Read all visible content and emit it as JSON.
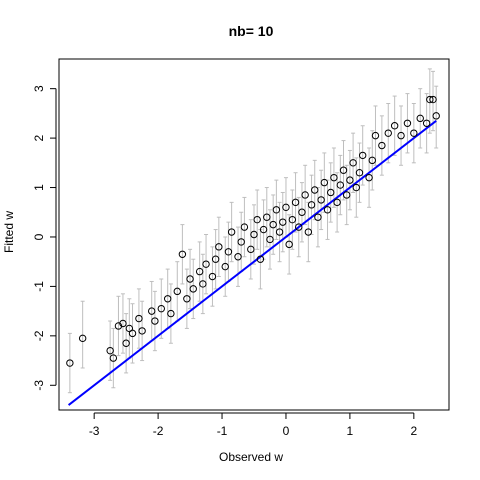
{
  "chart_data": {
    "type": "scatter",
    "title": "nb= 10",
    "xlabel": "Observed w",
    "ylabel": "Fitted w",
    "xlim": [
      -3.55,
      2.55
    ],
    "ylim": [
      -3.5,
      3.6
    ],
    "x_ticks": [
      "-3",
      "-2",
      "-1",
      "0",
      "1",
      "2"
    ],
    "y_ticks": [
      "-3",
      "-2",
      "-1",
      "0",
      "1",
      "2",
      "3"
    ],
    "grid": false,
    "legend": "none",
    "series": [
      {
        "kind": "points_with_error_bars",
        "marker": "open-circle",
        "point_color": "#000000",
        "errorbar_color": "#bebebe",
        "points": [
          {
            "x": -3.38,
            "y": -2.55,
            "lo": -3.15,
            "hi": -1.95
          },
          {
            "x": -3.18,
            "y": -2.05,
            "lo": -2.65,
            "hi": -1.3
          },
          {
            "x": -2.75,
            "y": -2.3,
            "lo": -2.9,
            "hi": -1.7
          },
          {
            "x": -2.7,
            "y": -2.45,
            "lo": -3.05,
            "hi": -1.85
          },
          {
            "x": -2.62,
            "y": -1.8,
            "lo": -2.4,
            "hi": -1.2
          },
          {
            "x": -2.55,
            "y": -1.75,
            "lo": -2.35,
            "hi": -1.15
          },
          {
            "x": -2.5,
            "y": -2.15,
            "lo": -2.75,
            "hi": -1.55
          },
          {
            "x": -2.45,
            "y": -1.85,
            "lo": -2.45,
            "hi": -1.25
          },
          {
            "x": -2.4,
            "y": -1.95,
            "lo": -2.55,
            "hi": -1.35
          },
          {
            "x": -2.3,
            "y": -1.65,
            "lo": -2.25,
            "hi": -1.05
          },
          {
            "x": -2.25,
            "y": -1.9,
            "lo": -2.5,
            "hi": -1.3
          },
          {
            "x": -2.1,
            "y": -1.5,
            "lo": -2.1,
            "hi": -0.9
          },
          {
            "x": -2.05,
            "y": -1.7,
            "lo": -2.3,
            "hi": -1.1
          },
          {
            "x": -1.95,
            "y": -1.45,
            "lo": -2.05,
            "hi": -0.85
          },
          {
            "x": -1.85,
            "y": -1.25,
            "lo": -1.85,
            "hi": -0.65
          },
          {
            "x": -1.8,
            "y": -1.55,
            "lo": -2.15,
            "hi": -0.95
          },
          {
            "x": -1.7,
            "y": -1.1,
            "lo": -1.7,
            "hi": -0.5
          },
          {
            "x": -1.62,
            "y": -0.35,
            "lo": -0.95,
            "hi": 0.25
          },
          {
            "x": -1.55,
            "y": -1.25,
            "lo": -1.85,
            "hi": -0.65
          },
          {
            "x": -1.5,
            "y": -0.85,
            "lo": -1.45,
            "hi": -0.25
          },
          {
            "x": -1.45,
            "y": -1.05,
            "lo": -1.65,
            "hi": -0.45
          },
          {
            "x": -1.35,
            "y": -0.7,
            "lo": -1.3,
            "hi": -0.1
          },
          {
            "x": -1.3,
            "y": -0.95,
            "lo": -1.55,
            "hi": -0.35
          },
          {
            "x": -1.25,
            "y": -0.55,
            "lo": -1.15,
            "hi": 0.05
          },
          {
            "x": -1.15,
            "y": -0.8,
            "lo": -1.4,
            "hi": -0.2
          },
          {
            "x": -1.1,
            "y": -0.45,
            "lo": -1.05,
            "hi": 0.15
          },
          {
            "x": -1.05,
            "y": -0.2,
            "lo": -0.8,
            "hi": 0.4
          },
          {
            "x": -0.95,
            "y": -0.6,
            "lo": -1.2,
            "hi": 0.0
          },
          {
            "x": -0.9,
            "y": -0.3,
            "lo": -0.9,
            "hi": 0.3
          },
          {
            "x": -0.85,
            "y": 0.1,
            "lo": -0.5,
            "hi": 0.7
          },
          {
            "x": -0.75,
            "y": -0.4,
            "lo": -1.0,
            "hi": 0.2
          },
          {
            "x": -0.7,
            "y": -0.1,
            "lo": -0.7,
            "hi": 0.5
          },
          {
            "x": -0.65,
            "y": 0.2,
            "lo": -0.4,
            "hi": 0.8
          },
          {
            "x": -0.55,
            "y": -0.25,
            "lo": -0.85,
            "hi": 0.35
          },
          {
            "x": -0.5,
            "y": 0.05,
            "lo": -0.55,
            "hi": 0.65
          },
          {
            "x": -0.45,
            "y": 0.35,
            "lo": -0.25,
            "hi": 0.95
          },
          {
            "x": -0.4,
            "y": -0.45,
            "lo": -1.05,
            "hi": 0.15
          },
          {
            "x": -0.35,
            "y": 0.15,
            "lo": -0.45,
            "hi": 0.75
          },
          {
            "x": -0.3,
            "y": 0.4,
            "lo": -0.2,
            "hi": 1.0
          },
          {
            "x": -0.25,
            "y": -0.05,
            "lo": -0.65,
            "hi": 0.55
          },
          {
            "x": -0.2,
            "y": 0.25,
            "lo": -0.35,
            "hi": 0.85
          },
          {
            "x": -0.15,
            "y": 0.55,
            "lo": -0.05,
            "hi": 1.15
          },
          {
            "x": -0.1,
            "y": 0.1,
            "lo": -0.5,
            "hi": 0.7
          },
          {
            "x": -0.05,
            "y": 0.3,
            "lo": -0.3,
            "hi": 0.9
          },
          {
            "x": 0.0,
            "y": 0.6,
            "lo": 0.0,
            "hi": 1.2
          },
          {
            "x": 0.05,
            "y": -0.15,
            "lo": -0.75,
            "hi": 0.45
          },
          {
            "x": 0.1,
            "y": 0.35,
            "lo": -0.25,
            "hi": 0.95
          },
          {
            "x": 0.15,
            "y": 0.7,
            "lo": 0.1,
            "hi": 1.3
          },
          {
            "x": 0.2,
            "y": 0.2,
            "lo": -0.4,
            "hi": 0.8
          },
          {
            "x": 0.25,
            "y": 0.5,
            "lo": -0.1,
            "hi": 1.1
          },
          {
            "x": 0.3,
            "y": 0.85,
            "lo": 0.25,
            "hi": 1.45
          },
          {
            "x": 0.35,
            "y": 0.1,
            "lo": -0.5,
            "hi": 0.7
          },
          {
            "x": 0.4,
            "y": 0.65,
            "lo": 0.05,
            "hi": 1.25
          },
          {
            "x": 0.45,
            "y": 0.95,
            "lo": 0.35,
            "hi": 1.55
          },
          {
            "x": 0.5,
            "y": 0.4,
            "lo": -0.2,
            "hi": 1.0
          },
          {
            "x": 0.55,
            "y": 0.75,
            "lo": 0.15,
            "hi": 1.35
          },
          {
            "x": 0.6,
            "y": 1.1,
            "lo": 0.5,
            "hi": 1.7
          },
          {
            "x": 0.65,
            "y": 0.55,
            "lo": -0.05,
            "hi": 1.15
          },
          {
            "x": 0.7,
            "y": 0.9,
            "lo": 0.3,
            "hi": 1.5
          },
          {
            "x": 0.75,
            "y": 1.2,
            "lo": 0.6,
            "hi": 1.8
          },
          {
            "x": 0.8,
            "y": 0.7,
            "lo": 0.1,
            "hi": 1.3
          },
          {
            "x": 0.85,
            "y": 1.05,
            "lo": 0.45,
            "hi": 1.65
          },
          {
            "x": 0.9,
            "y": 1.35,
            "lo": 0.75,
            "hi": 1.95
          },
          {
            "x": 0.95,
            "y": 0.85,
            "lo": 0.25,
            "hi": 1.45
          },
          {
            "x": 1.0,
            "y": 1.15,
            "lo": 0.55,
            "hi": 1.75
          },
          {
            "x": 1.05,
            "y": 1.5,
            "lo": 0.9,
            "hi": 2.1
          },
          {
            "x": 1.1,
            "y": 1.0,
            "lo": 0.4,
            "hi": 1.6
          },
          {
            "x": 1.15,
            "y": 1.3,
            "lo": 0.7,
            "hi": 1.9
          },
          {
            "x": 1.2,
            "y": 1.65,
            "lo": 1.05,
            "hi": 2.25
          },
          {
            "x": 1.3,
            "y": 1.2,
            "lo": 0.6,
            "hi": 1.8
          },
          {
            "x": 1.35,
            "y": 1.55,
            "lo": 0.95,
            "hi": 2.15
          },
          {
            "x": 1.4,
            "y": 2.05,
            "lo": 1.45,
            "hi": 2.65
          },
          {
            "x": 1.5,
            "y": 1.85,
            "lo": 1.25,
            "hi": 2.45
          },
          {
            "x": 1.6,
            "y": 2.1,
            "lo": 1.5,
            "hi": 2.7
          },
          {
            "x": 1.7,
            "y": 2.25,
            "lo": 1.65,
            "hi": 2.85
          },
          {
            "x": 1.8,
            "y": 2.05,
            "lo": 1.45,
            "hi": 2.65
          },
          {
            "x": 1.9,
            "y": 2.3,
            "lo": 1.7,
            "hi": 2.9
          },
          {
            "x": 2.0,
            "y": 2.1,
            "lo": 1.5,
            "hi": 2.7
          },
          {
            "x": 2.1,
            "y": 2.4,
            "lo": 1.8,
            "hi": 3.0
          },
          {
            "x": 2.2,
            "y": 2.3,
            "lo": 1.7,
            "hi": 2.9
          },
          {
            "x": 2.25,
            "y": 2.78,
            "lo": 2.1,
            "hi": 3.4
          },
          {
            "x": 2.3,
            "y": 2.78,
            "lo": 2.15,
            "hi": 3.35
          },
          {
            "x": 2.35,
            "y": 2.45,
            "lo": 1.8,
            "hi": 3.05
          }
        ]
      },
      {
        "kind": "reference_line",
        "color": "#0000ff",
        "x": [
          -3.4,
          2.35
        ],
        "y": [
          -3.4,
          2.35
        ]
      }
    ]
  }
}
